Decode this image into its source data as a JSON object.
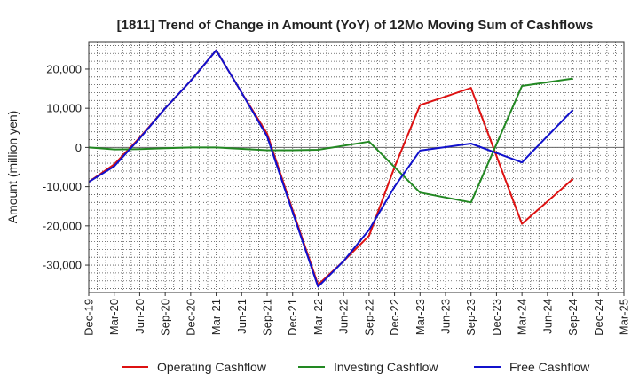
{
  "chart_data": {
    "type": "line",
    "title": "[1811]  Trend of Change in Amount (YoY) of 12Mo Moving Sum of Cashflows",
    "xlabel": "",
    "ylabel": "Amount (million yen)",
    "ylim": [
      -37000,
      27000
    ],
    "yticks": [
      20000,
      10000,
      0,
      -10000,
      -20000,
      -30000
    ],
    "ytick_labels": [
      "20,000",
      "10,000",
      "0",
      "-10,000",
      "-20,000",
      "-30,000"
    ],
    "grid": true,
    "legend_position": "bottom",
    "categories": [
      "Dec-19",
      "Mar-20",
      "Jun-20",
      "Sep-20",
      "Dec-20",
      "Mar-21",
      "Jun-21",
      "Sep-21",
      "Dec-21",
      "Mar-22",
      "Jun-22",
      "Sep-22",
      "Dec-22",
      "Mar-23",
      "Jun-23",
      "Sep-23",
      "Dec-23",
      "Mar-24",
      "Jun-24",
      "Sep-24",
      "Dec-24",
      "Mar-25"
    ],
    "series": [
      {
        "name": "Operating Cashflow",
        "color": "#dd1111",
        "values": [
          -8800,
          -4300,
          2500,
          10000,
          17000,
          24800,
          14000,
          3500,
          -16000,
          -35000,
          -29000,
          -22500,
          -5000,
          10800,
          null,
          15200,
          null,
          -19500,
          null,
          -8000,
          null,
          null
        ]
      },
      {
        "name": "Investing Cashflow",
        "color": "#228822",
        "values": [
          0,
          -500,
          -400,
          -200,
          0,
          0,
          null,
          -700,
          -700,
          -600,
          null,
          1500,
          null,
          -11500,
          null,
          -14000,
          null,
          15700,
          null,
          17600,
          null,
          null
        ]
      },
      {
        "name": "Free Cashflow",
        "color": "#1111cc",
        "values": [
          -8800,
          -4800,
          2300,
          10000,
          17000,
          24800,
          14000,
          2800,
          -16500,
          -35500,
          -29000,
          -21000,
          -10000,
          -800,
          null,
          1000,
          null,
          -3800,
          null,
          9600,
          null,
          null
        ]
      }
    ]
  }
}
